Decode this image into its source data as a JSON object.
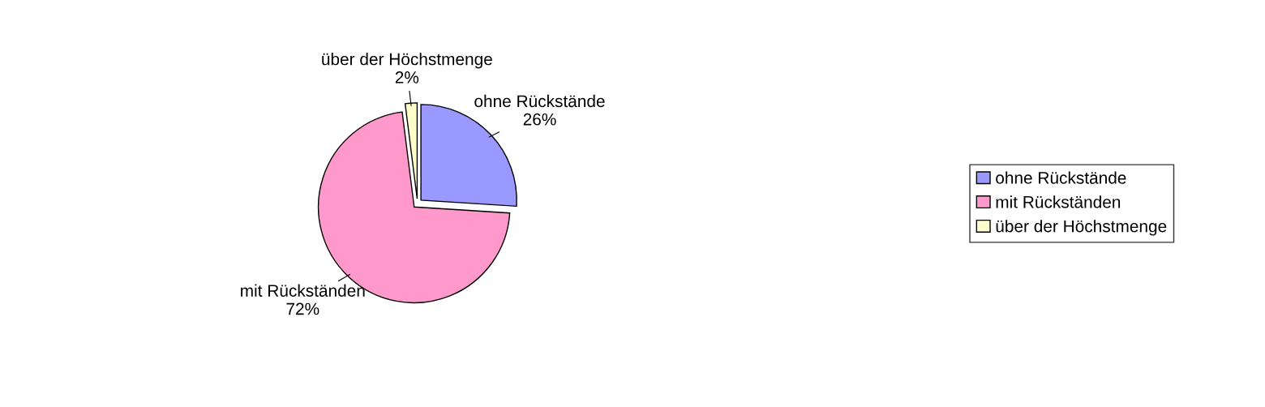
{
  "chart_data": {
    "type": "pie",
    "categories": [
      "ohne Rückstände",
      "mit Rückständen",
      "über der Höchstmenge"
    ],
    "values": [
      26,
      72,
      2
    ],
    "colors": [
      "#9999ff",
      "#ff99cc",
      "#ffffcc"
    ],
    "value_labels": [
      "26%",
      "72%",
      "2%"
    ],
    "legend": "right"
  }
}
